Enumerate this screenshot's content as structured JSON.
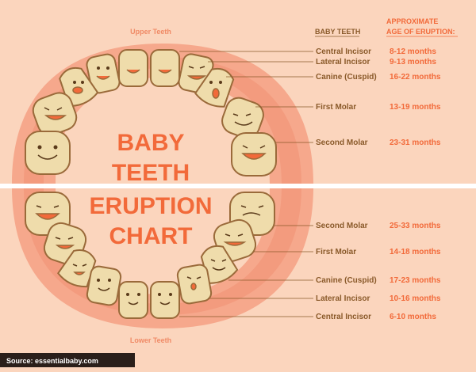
{
  "title_lines": [
    "BABY",
    "TEETH",
    "ERUPTION",
    "CHART"
  ],
  "upper_label": "Upper Teeth",
  "lower_label": "Lower Teeth",
  "header": {
    "col1": "BABY TEETH",
    "col2_line1": "APPROXIMATE",
    "col2_line2": "AGE OF ERUPTION:"
  },
  "upper_rows": [
    {
      "tooth": "Central Incisor",
      "age": "8-12 months"
    },
    {
      "tooth": "Lateral Incisor",
      "age": "9-13 months"
    },
    {
      "tooth": "Canine (Cuspid)",
      "age": "16-22 months"
    },
    {
      "tooth": "First Molar",
      "age": "13-19 months"
    },
    {
      "tooth": "Second Molar",
      "age": "23-31 months"
    }
  ],
  "lower_rows": [
    {
      "tooth": "Second Molar",
      "age": "25-33 months"
    },
    {
      "tooth": "First Molar",
      "age": "14-18 months"
    },
    {
      "tooth": "Canine (Cuspid)",
      "age": "17-23 months"
    },
    {
      "tooth": "Lateral Incisor",
      "age": "10-16 months"
    },
    {
      "tooth": "Central Incisor",
      "age": "6-10 months"
    }
  ],
  "source": "Source: essentialbaby.com",
  "colors": {
    "background": "#fbd5bd",
    "gum_outer": "#f6a88c",
    "gum_inner": "#f08f73",
    "tooth_fill": "#efdcab",
    "tooth_stroke": "#9a6a3a",
    "title": "#f26a3a",
    "label_text": "#8a5a2a",
    "age_text": "#f26a3a",
    "source_bar": "#2a1f1a"
  }
}
